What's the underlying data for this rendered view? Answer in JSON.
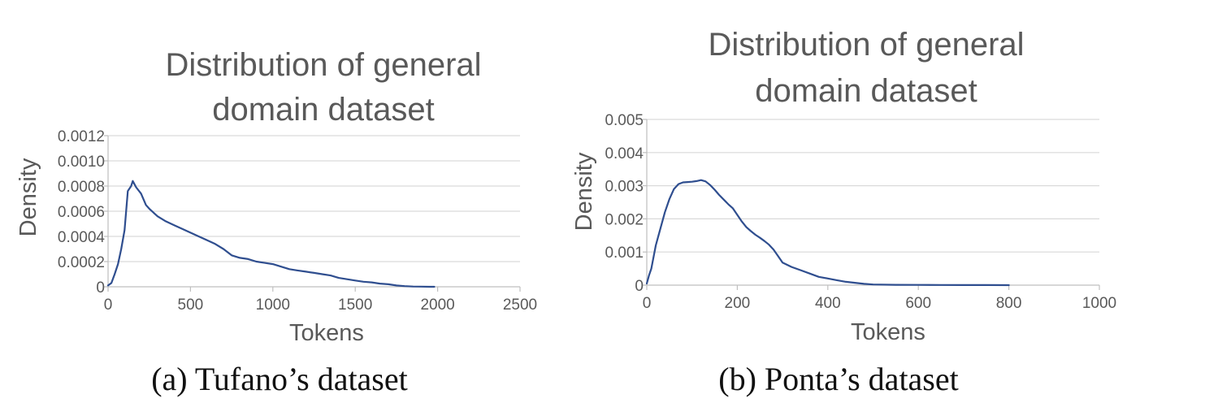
{
  "chart_data": [
    {
      "type": "line",
      "title": [
        "Distribution of general",
        "domain dataset"
      ],
      "xlabel": "Tokens",
      "ylabel": "Density",
      "xlim": [
        0,
        2500
      ],
      "ylim": [
        0,
        0.0012
      ],
      "x_ticks": [
        0,
        500,
        1000,
        1500,
        2000,
        2500
      ],
      "x_tick_labels": [
        "0",
        "500",
        "1000",
        "1500",
        "2000",
        "2500"
      ],
      "y_ticks": [
        0,
        0.0002,
        0.0004,
        0.0006,
        0.0008,
        0.001,
        0.0012
      ],
      "y_tick_labels": [
        "0",
        "0.0002",
        "0.0004",
        "0.0006",
        "0.0008",
        "0.0010",
        "0.0012"
      ],
      "grid": true,
      "caption": "(a) Tufano’s dataset",
      "series": [
        {
          "color": "#2f4e8f",
          "x": [
            0,
            20,
            40,
            60,
            80,
            100,
            120,
            140,
            150,
            170,
            200,
            230,
            250,
            300,
            350,
            400,
            450,
            500,
            550,
            600,
            650,
            700,
            750,
            800,
            850,
            900,
            950,
            1000,
            1050,
            1100,
            1150,
            1200,
            1250,
            1300,
            1350,
            1400,
            1450,
            1500,
            1550,
            1600,
            1650,
            1700,
            1750,
            1800,
            1850,
            1900,
            1950,
            1980
          ],
          "y": [
            1e-05,
            3e-05,
            0.0001,
            0.00018,
            0.0003,
            0.00045,
            0.00076,
            0.0008,
            0.00084,
            0.00079,
            0.00074,
            0.00065,
            0.00062,
            0.00056,
            0.00052,
            0.00049,
            0.00046,
            0.00043,
            0.0004,
            0.00037,
            0.00034,
            0.0003,
            0.00025,
            0.00023,
            0.00022,
            0.0002,
            0.00019,
            0.00018,
            0.00016,
            0.00014,
            0.00013,
            0.00012,
            0.00011,
            0.0001,
            9e-05,
            7e-05,
            6e-05,
            5e-05,
            4e-05,
            3.5e-05,
            2.5e-05,
            2e-05,
            1e-05,
            5e-06,
            2e-06,
            1e-06,
            0,
            0
          ]
        }
      ]
    },
    {
      "type": "line",
      "title": [
        "Distribution of general",
        "domain dataset"
      ],
      "xlabel": "Tokens",
      "ylabel": "Density",
      "xlim": [
        0,
        1000
      ],
      "ylim": [
        0,
        0.005
      ],
      "x_ticks": [
        0,
        200,
        400,
        600,
        800,
        1000
      ],
      "x_tick_labels": [
        "0",
        "200",
        "400",
        "600",
        "800",
        "1000"
      ],
      "y_ticks": [
        0,
        0.001,
        0.002,
        0.003,
        0.004,
        0.005
      ],
      "y_tick_labels": [
        "0",
        "0.001",
        "0.002",
        "0.003",
        "0.004",
        "0.005"
      ],
      "grid": true,
      "caption": "(b) Ponta’s dataset",
      "series": [
        {
          "color": "#2f4e8f",
          "x": [
            0,
            5,
            10,
            20,
            30,
            40,
            50,
            60,
            70,
            80,
            90,
            100,
            110,
            120,
            130,
            140,
            150,
            160,
            170,
            180,
            190,
            200,
            210,
            220,
            230,
            240,
            250,
            260,
            270,
            280,
            290,
            300,
            320,
            340,
            360,
            380,
            400,
            420,
            440,
            460,
            480,
            500,
            550,
            600,
            650,
            700,
            750,
            800
          ],
          "y": [
            5e-05,
            0.0003,
            0.0005,
            0.0012,
            0.0017,
            0.0022,
            0.0026,
            0.0029,
            0.00305,
            0.0031,
            0.00311,
            0.00312,
            0.00314,
            0.00317,
            0.00313,
            0.00302,
            0.00288,
            0.00272,
            0.00258,
            0.00244,
            0.00232,
            0.00212,
            0.00192,
            0.00175,
            0.00163,
            0.00152,
            0.00143,
            0.00133,
            0.00122,
            0.00107,
            0.00088,
            0.00068,
            0.00055,
            0.00045,
            0.00035,
            0.00025,
            0.0002,
            0.00015,
            0.0001,
            7e-05,
            4e-05,
            2e-05,
            1e-05,
            8e-06,
            5e-06,
            3e-06,
            2e-06,
            1e-06
          ]
        }
      ]
    }
  ]
}
